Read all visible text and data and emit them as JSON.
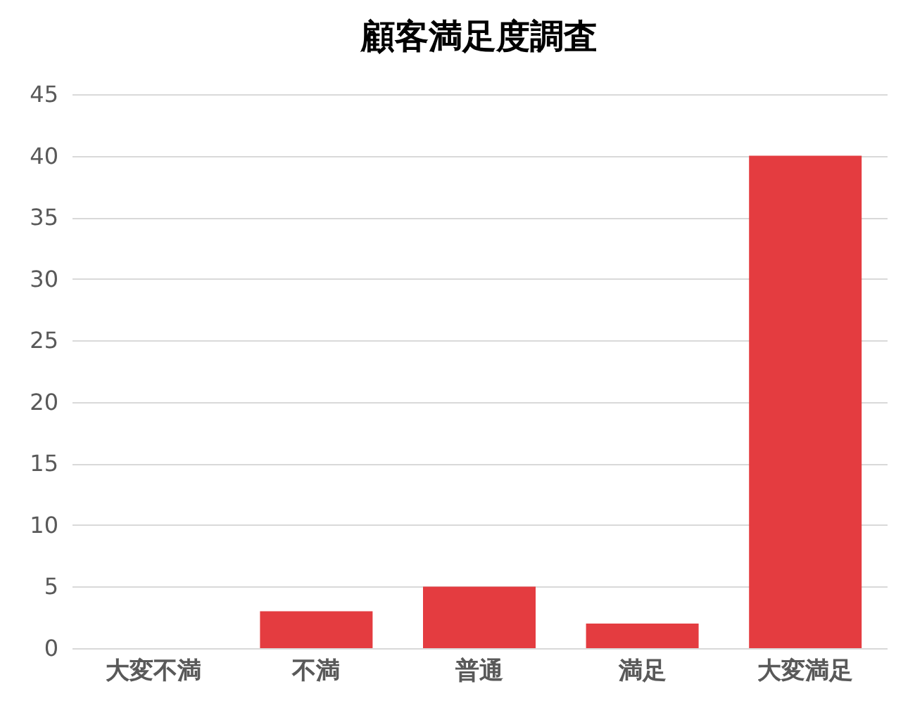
{
  "chart_data": {
    "type": "bar",
    "title": "顧客満足度調査",
    "categories": [
      "大変不満",
      "不満",
      "普通",
      "満足",
      "大変満足"
    ],
    "values": [
      0,
      3,
      5,
      2,
      40
    ],
    "color": "#e43c40",
    "ylim": [
      0,
      45
    ],
    "yticks": [
      0,
      5,
      10,
      15,
      20,
      25,
      30,
      35,
      40,
      45
    ],
    "grid": "y"
  }
}
